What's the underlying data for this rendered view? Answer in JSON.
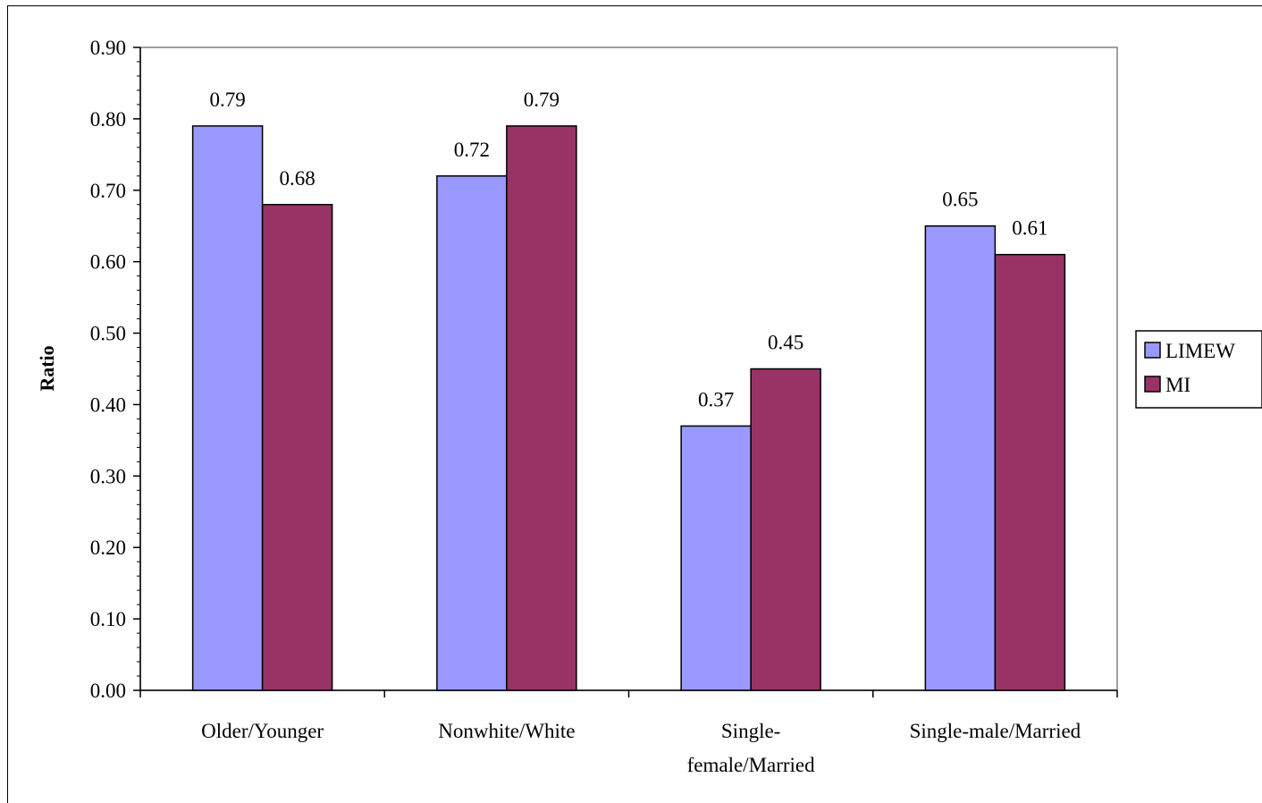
{
  "chart_data": {
    "type": "bar",
    "title": "",
    "xlabel": "",
    "ylabel": "Ratio",
    "ylim": [
      0,
      0.9
    ],
    "ytick_step": 0.1,
    "categories": [
      [
        "Older/Younger"
      ],
      [
        "Nonwhite/White"
      ],
      [
        "Single-",
        "female/Married"
      ],
      [
        "Single-male/Married"
      ]
    ],
    "series": [
      {
        "name": "LIMEW",
        "color": "#9999ff",
        "values": [
          0.79,
          0.72,
          0.37,
          0.65
        ]
      },
      {
        "name": "MI",
        "color": "#993366",
        "values": [
          0.68,
          0.79,
          0.45,
          0.61
        ]
      }
    ],
    "legend_position": "right",
    "grid": false,
    "data_labels": true
  }
}
